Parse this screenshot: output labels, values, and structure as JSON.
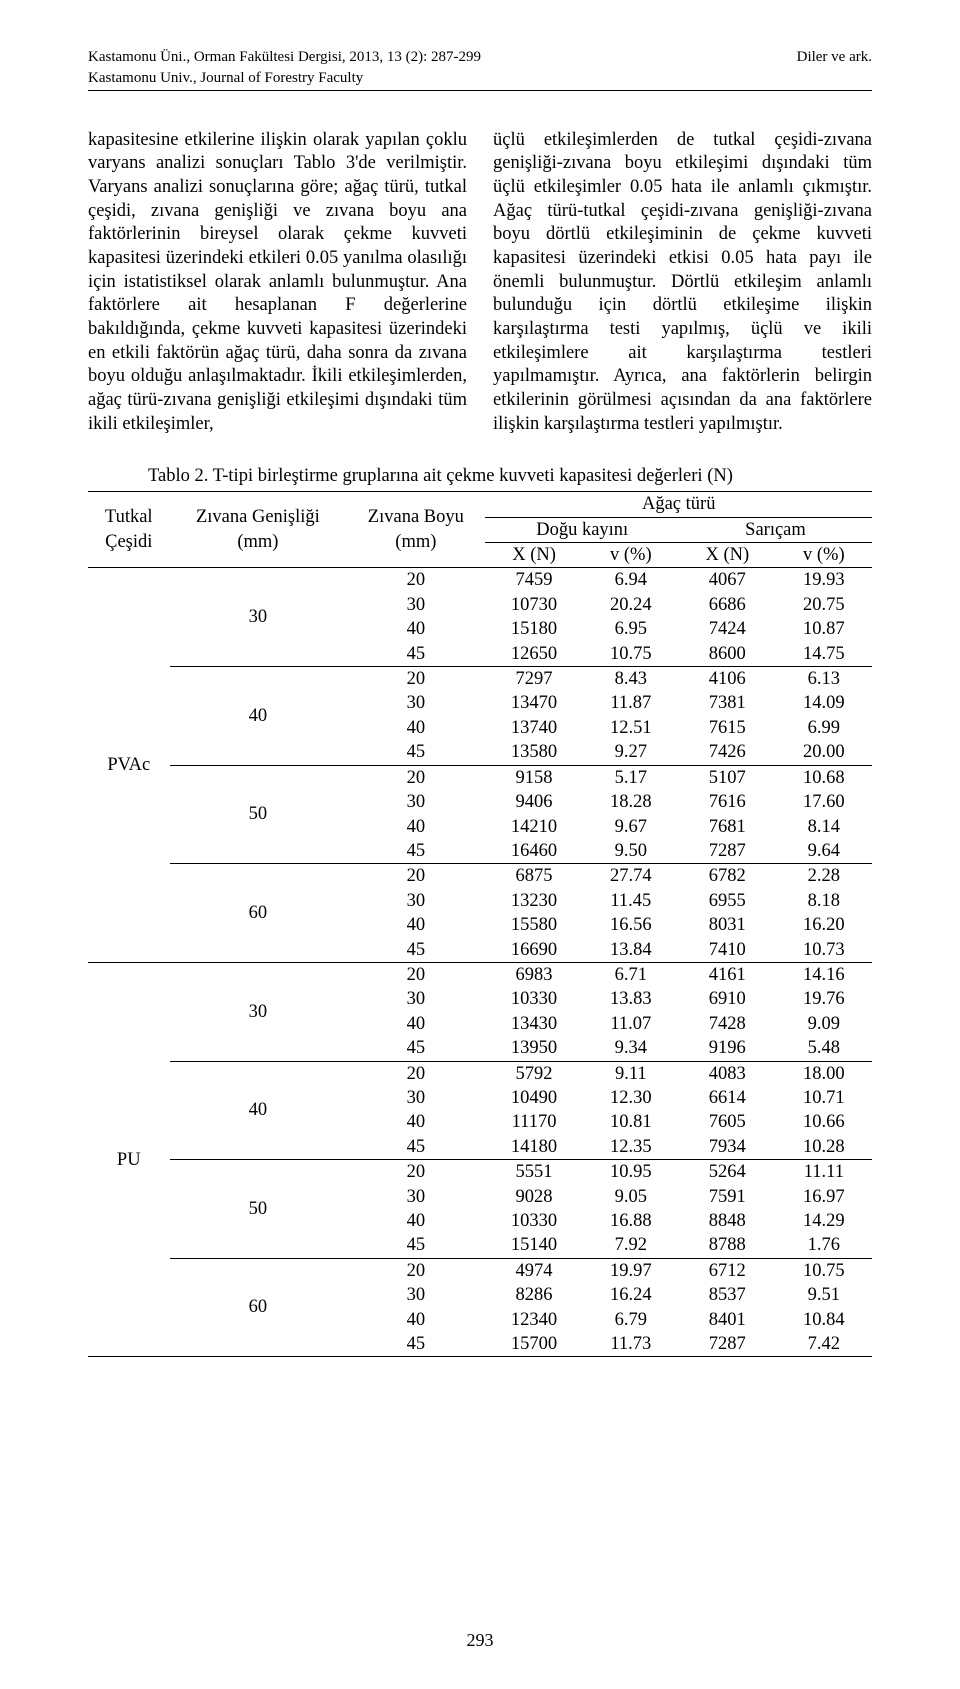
{
  "header": {
    "left_line1": "Kastamonu Üni., Orman Fakültesi Dergisi, 2013, 13 (2): 287-299",
    "right_line1": "Diler ve ark.",
    "left_line2": "Kastamonu Univ., Journal of Forestry Faculty"
  },
  "body": {
    "left_paragraph": "kapasitesine etkilerine ilişkin olarak yapılan çoklu varyans analizi sonuçları Tablo 3'de verilmiştir. Varyans analizi sonuçlarına göre; ağaç türü, tutkal çeşidi, zıvana genişliği ve zıvana boyu ana faktörlerinin bireysel olarak çekme kuvveti kapasitesi üzerindeki etkileri 0.05 yanılma olasılığı için istatistiksel olarak anlamlı bulunmuştur. Ana faktörlere ait hesaplanan F değerlerine bakıldığında, çekme kuvveti kapasitesi üzerindeki en etkili faktörün ağaç türü, daha sonra da zıvana boyu olduğu anlaşılmaktadır. İkili etkileşimlerden, ağaç türü-zıvana genişliği etkileşimi dışındaki tüm ikili etkileşimler,",
    "right_paragraph": "üçlü etkileşimlerden de tutkal çeşidi-zıvana genişliği-zıvana boyu etkileşimi dışındaki tüm üçlü etkileşimler 0.05 hata ile anlamlı çıkmıştır. Ağaç türü-tutkal çeşidi-zıvana genişliği-zıvana boyu dörtlü etkileşiminin de çekme kuvveti kapasitesi üzerindeki etkisi 0.05 hata payı ile önemli bulunmuştur. Dörtlü etkileşim anlamlı bulunduğu için dörtlü etkileşime ilişkin karşılaştırma testi yapılmış, üçlü ve ikili etkileşimlere ait karşılaştırma testleri yapılmamıştır. Ayrıca, ana faktörlerin belirgin etkilerinin görülmesi açısından da ana faktörlere ilişkin karşılaştırma testleri yapılmıştır."
  },
  "table": {
    "caption": "Tablo 2. T-tipi birleştirme gruplarına ait çekme kuvveti kapasitesi değerleri (N)",
    "headers": {
      "tutkal": "Tutkal\nÇeşidi",
      "zg": "Zıvana Genişliği\n(mm)",
      "zb": "Zıvana Boyu\n(mm)",
      "agac": "Ağaç türü",
      "dogu": "Doğu kayını",
      "saricam": "Sarıçam",
      "xn": "X (N)",
      "v": "v (%)"
    },
    "header_borders": {
      "outer_top": true,
      "outer_bottom": true,
      "agac_underline": true,
      "species_underline": true
    },
    "groups": [
      {
        "tutkal": "PVAc",
        "subgroups": [
          {
            "zg": "30",
            "rows": [
              {
                "zb": "20",
                "x1": "7459",
                "v1": "6.94",
                "x2": "4067",
                "v2": "19.93"
              },
              {
                "zb": "30",
                "x1": "10730",
                "v1": "20.24",
                "x2": "6686",
                "v2": "20.75"
              },
              {
                "zb": "40",
                "x1": "15180",
                "v1": "6.95",
                "x2": "7424",
                "v2": "10.87"
              },
              {
                "zb": "45",
                "x1": "12650",
                "v1": "10.75",
                "x2": "8600",
                "v2": "14.75"
              }
            ]
          },
          {
            "zg": "40",
            "rows": [
              {
                "zb": "20",
                "x1": "7297",
                "v1": "8.43",
                "x2": "4106",
                "v2": "6.13"
              },
              {
                "zb": "30",
                "x1": "13470",
                "v1": "11.87",
                "x2": "7381",
                "v2": "14.09"
              },
              {
                "zb": "40",
                "x1": "13740",
                "v1": "12.51",
                "x2": "7615",
                "v2": "6.99"
              },
              {
                "zb": "45",
                "x1": "13580",
                "v1": "9.27",
                "x2": "7426",
                "v2": "20.00"
              }
            ]
          },
          {
            "zg": "50",
            "rows": [
              {
                "zb": "20",
                "x1": "9158",
                "v1": "5.17",
                "x2": "5107",
                "v2": "10.68"
              },
              {
                "zb": "30",
                "x1": "9406",
                "v1": "18.28",
                "x2": "7616",
                "v2": "17.60"
              },
              {
                "zb": "40",
                "x1": "14210",
                "v1": "9.67",
                "x2": "7681",
                "v2": "8.14"
              },
              {
                "zb": "45",
                "x1": "16460",
                "v1": "9.50",
                "x2": "7287",
                "v2": "9.64"
              }
            ]
          },
          {
            "zg": "60",
            "rows": [
              {
                "zb": "20",
                "x1": "6875",
                "v1": "27.74",
                "x2": "6782",
                "v2": "2.28"
              },
              {
                "zb": "30",
                "x1": "13230",
                "v1": "11.45",
                "x2": "6955",
                "v2": "8.18"
              },
              {
                "zb": "40",
                "x1": "15580",
                "v1": "16.56",
                "x2": "8031",
                "v2": "16.20"
              },
              {
                "zb": "45",
                "x1": "16690",
                "v1": "13.84",
                "x2": "7410",
                "v2": "10.73"
              }
            ]
          }
        ]
      },
      {
        "tutkal": "PU",
        "subgroups": [
          {
            "zg": "30",
            "rows": [
              {
                "zb": "20",
                "x1": "6983",
                "v1": "6.71",
                "x2": "4161",
                "v2": "14.16"
              },
              {
                "zb": "30",
                "x1": "10330",
                "v1": "13.83",
                "x2": "6910",
                "v2": "19.76"
              },
              {
                "zb": "40",
                "x1": "13430",
                "v1": "11.07",
                "x2": "7428",
                "v2": "9.09"
              },
              {
                "zb": "45",
                "x1": "13950",
                "v1": "9.34",
                "x2": "9196",
                "v2": "5.48"
              }
            ]
          },
          {
            "zg": "40",
            "rows": [
              {
                "zb": "20",
                "x1": "5792",
                "v1": "9.11",
                "x2": "4083",
                "v2": "18.00"
              },
              {
                "zb": "30",
                "x1": "10490",
                "v1": "12.30",
                "x2": "6614",
                "v2": "10.71"
              },
              {
                "zb": "40",
                "x1": "11170",
                "v1": "10.81",
                "x2": "7605",
                "v2": "10.66"
              },
              {
                "zb": "45",
                "x1": "14180",
                "v1": "12.35",
                "x2": "7934",
                "v2": "10.28"
              }
            ]
          },
          {
            "zg": "50",
            "rows": [
              {
                "zb": "20",
                "x1": "5551",
                "v1": "10.95",
                "x2": "5264",
                "v2": "11.11"
              },
              {
                "zb": "30",
                "x1": "9028",
                "v1": "9.05",
                "x2": "7591",
                "v2": "16.97"
              },
              {
                "zb": "40",
                "x1": "10330",
                "v1": "16.88",
                "x2": "8848",
                "v2": "14.29"
              },
              {
                "zb": "45",
                "x1": "15140",
                "v1": "7.92",
                "x2": "8788",
                "v2": "1.76"
              }
            ]
          },
          {
            "zg": "60",
            "rows": [
              {
                "zb": "20",
                "x1": "4974",
                "v1": "19.97",
                "x2": "6712",
                "v2": "10.75"
              },
              {
                "zb": "30",
                "x1": "8286",
                "v1": "16.24",
                "x2": "8537",
                "v2": "9.51"
              },
              {
                "zb": "40",
                "x1": "12340",
                "v1": "6.79",
                "x2": "8401",
                "v2": "10.84"
              },
              {
                "zb": "45",
                "x1": "15700",
                "v1": "11.73",
                "x2": "7287",
                "v2": "7.42"
              }
            ]
          }
        ]
      }
    ]
  },
  "footer": {
    "page_number": "293"
  },
  "colors": {
    "text": "#000000",
    "background": "#ffffff",
    "rule": "#000000"
  }
}
